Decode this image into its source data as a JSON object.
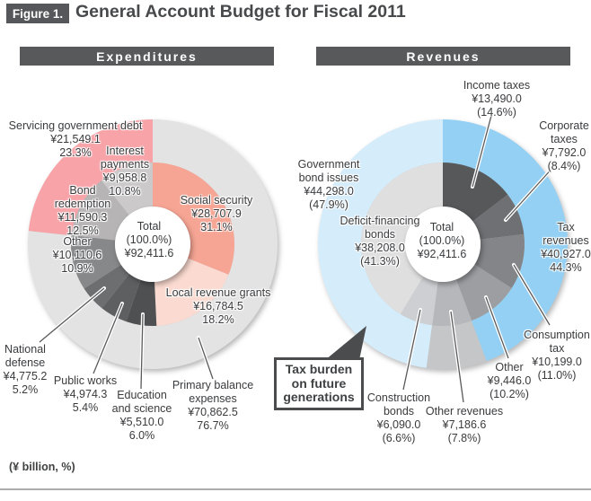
{
  "figure": {
    "tag": "Figure 1.",
    "title": "General Account Budget for Fiscal 2011",
    "unit_note": "(¥ billion, %)"
  },
  "callout": {
    "text": "Tax burden\non future\ngenerations"
  },
  "chart_data": [
    {
      "id": "expenditures",
      "type": "pie",
      "variant": "double-ring-donut",
      "title": "Expenditures",
      "unit": "¥ billion",
      "total": {
        "label": "Total",
        "pct": "(100.0%)",
        "value": "¥92,411.6",
        "value_num": 92411.6
      },
      "inner_ring": [
        {
          "id": "social-security",
          "name": "Social security",
          "value": "¥28,707.9",
          "value_num": 28707.9,
          "pct": "31.1%",
          "share": 31.1,
          "color": "#F6A594"
        },
        {
          "id": "local-revenue-grants",
          "name": "Local revenue grants",
          "value": "¥16,784.5",
          "value_num": 16784.5,
          "pct": "18.2%",
          "share": 18.2,
          "color": "#FBDBD1"
        },
        {
          "id": "education-science",
          "name": "Education\nand science",
          "value": "¥5,510.0",
          "value_num": 5510.0,
          "pct": "6.0%",
          "share": 6.0,
          "color": "#4F5052"
        },
        {
          "id": "public-works",
          "name": "Public works",
          "value": "¥4,974.3",
          "value_num": 4974.3,
          "pct": "5.4%",
          "share": 5.4,
          "color": "#5E5F61"
        },
        {
          "id": "national-defense",
          "name": "National\ndefense",
          "value": "¥4,775.2",
          "value_num": 4775.2,
          "pct": "5.2%",
          "share": 5.2,
          "color": "#6D6E70"
        },
        {
          "id": "other-expenditures",
          "name": "Other",
          "value": "¥10,110.6",
          "value_num": 10110.6,
          "pct": "10.9%",
          "share": 10.9,
          "color": "#87888A"
        },
        {
          "id": "bond-redemption",
          "name": "Bond\nredemption",
          "value": "¥11,590.3",
          "value_num": 11590.3,
          "pct": "12.5%",
          "share": 12.5,
          "color": "#B6B4B5"
        },
        {
          "id": "interest-payments",
          "name": "Interest\npayments",
          "value": "¥9,958.8",
          "value_num": 9958.8,
          "pct": "10.8%",
          "share": 10.8,
          "color": "#CBC9CA"
        }
      ],
      "outer_ring": [
        {
          "id": "primary-balance-expenses",
          "name": "Primary balance\nexpenses",
          "value": "¥70,862.5",
          "value_num": 70862.5,
          "pct": "76.7%",
          "share": 76.7,
          "color": "#E4E3E4"
        },
        {
          "id": "servicing-government-debt",
          "name": "Servicing government debt",
          "value": "¥21,549.1",
          "value_num": 21549.1,
          "pct": "23.3%",
          "share": 23.3,
          "color": "#F7A3A8"
        }
      ]
    },
    {
      "id": "revenues",
      "type": "pie",
      "variant": "double-ring-donut",
      "title": "Revenues",
      "unit": "¥ billion",
      "total": {
        "label": "Total",
        "pct": "(100.0%)",
        "value": "¥92,411.6",
        "value_num": 92411.6
      },
      "inner_ring": [
        {
          "id": "income-taxes",
          "name": "Income taxes",
          "value": "¥13,490.0",
          "value_num": 13490.0,
          "pct": "(14.6%)",
          "share": 14.6,
          "color": "#57585A"
        },
        {
          "id": "corporate-taxes",
          "name": "Corporate\ntaxes",
          "value": "¥7,792.0",
          "value_num": 7792.0,
          "pct": "(8.4%)",
          "share": 8.4,
          "color": "#6F7073"
        },
        {
          "id": "consumption-tax",
          "name": "Consumption\ntax",
          "value": "¥10,199.0",
          "value_num": 10199.0,
          "pct": "(11.0%)",
          "share": 11.0,
          "color": "#838588"
        },
        {
          "id": "other-taxes",
          "name": "Other",
          "value": "¥9,446.0",
          "value_num": 9446.0,
          "pct": "(10.2%)",
          "share": 10.2,
          "color": "#9C9EA1"
        },
        {
          "id": "other-revenues",
          "name": "Other revenues",
          "value": "¥7,186.6",
          "value_num": 7186.6,
          "pct": "(7.8%)",
          "share": 7.8,
          "color": "#B5B7BA"
        },
        {
          "id": "construction-bonds",
          "name": "Construction\nbonds",
          "value": "¥6,090.0",
          "value_num": 6090.0,
          "pct": "(6.6%)",
          "share": 6.6,
          "color": "#CDCFD2"
        },
        {
          "id": "deficit-financing-bonds",
          "name": "Deficit-financing\nbonds",
          "value": "¥38,208.0",
          "value_num": 38208.0,
          "pct": "(41.3%)",
          "share": 41.3,
          "color": "#DFDFE0"
        }
      ],
      "outer_ring": [
        {
          "id": "tax-revenues",
          "name": "Tax\nrevenues",
          "value": "¥40,927.0",
          "value_num": 40927.0,
          "pct": "44.3%",
          "share": 44.3,
          "color": "#93D0F4"
        },
        {
          "id": "other-revenues-outer",
          "name": "Other revenues",
          "value": "¥7,186.6",
          "value_num": 7186.6,
          "pct": "(7.8%)",
          "share": 7.8,
          "color": "#C5C6C8"
        },
        {
          "id": "government-bond-issues",
          "name": "Government\nbond issues",
          "value": "¥44,298.0",
          "value_num": 44298.0,
          "pct": "(47.9%)",
          "share": 47.9,
          "color": "#D5ECFB"
        }
      ]
    }
  ]
}
